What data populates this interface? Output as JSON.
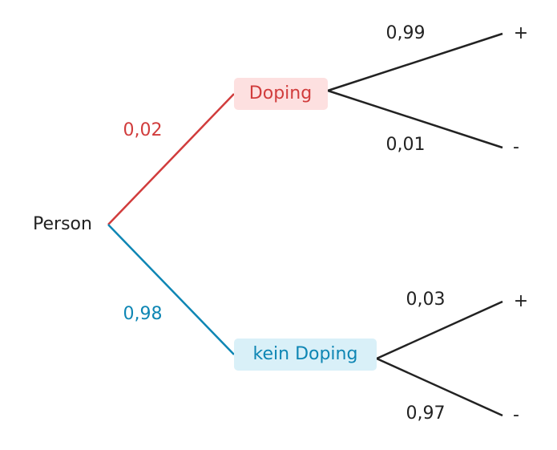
{
  "tree": {
    "root": "Person",
    "branches": [
      {
        "label": "Doping",
        "probability": "0,02",
        "branches": [
          {
            "label": "+",
            "probability": "0,99"
          },
          {
            "label": "-",
            "probability": "0,01"
          }
        ]
      },
      {
        "label": "kein Doping",
        "probability": "0,98",
        "branches": [
          {
            "label": "+",
            "probability": "0,03"
          },
          {
            "label": "-",
            "probability": "0,97"
          }
        ]
      }
    ]
  }
}
